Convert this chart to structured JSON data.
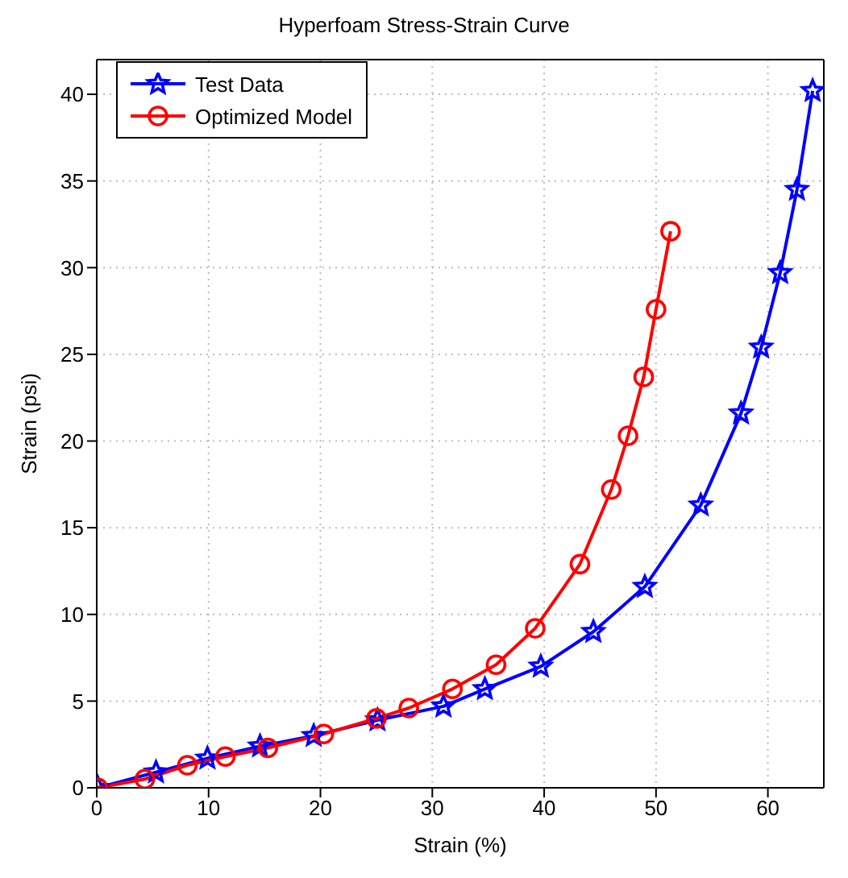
{
  "chart_data": {
    "type": "line",
    "title": "Hyperfoam Stress-Strain Curve",
    "xlabel": "Strain (%)",
    "ylabel": "Strain (psi)",
    "xlim": [
      0,
      65
    ],
    "xticks": [
      0,
      10,
      20,
      30,
      40,
      50,
      60
    ],
    "ylim": [
      0,
      42
    ],
    "yticks": [
      0,
      5,
      10,
      15,
      20,
      25,
      30,
      35,
      40
    ],
    "grid": true,
    "legend": "top left",
    "line_style": "solid",
    "series": [
      {
        "name": "Test Data",
        "color": "#0000ff",
        "marker": "star",
        "x": [
          0.1,
          5.3,
          9.9,
          14.6,
          19.4,
          25.1,
          31.0,
          34.7,
          39.7,
          44.4,
          49.0,
          54.0,
          57.6,
          59.4,
          61.1,
          62.6,
          64.0
        ],
        "values": [
          0,
          0.9,
          1.7,
          2.4,
          3.0,
          3.9,
          4.7,
          5.7,
          7.0,
          9.0,
          11.6,
          16.3,
          21.6,
          25.4,
          29.7,
          34.5,
          40.2
        ]
      },
      {
        "name": "Optimized Model",
        "color": "#ff0000",
        "marker": "circle",
        "x": [
          0.1,
          4.3,
          8.1,
          11.5,
          15.3,
          20.3,
          25.0,
          27.9,
          31.8,
          35.7,
          39.2,
          43.2,
          46.0,
          47.5,
          48.9,
          50.0,
          51.3
        ],
        "values": [
          0,
          0.5,
          1.3,
          1.8,
          2.3,
          3.1,
          4.0,
          4.6,
          5.7,
          7.1,
          9.2,
          12.9,
          17.2,
          20.3,
          23.7,
          27.6,
          32.1
        ]
      }
    ]
  }
}
